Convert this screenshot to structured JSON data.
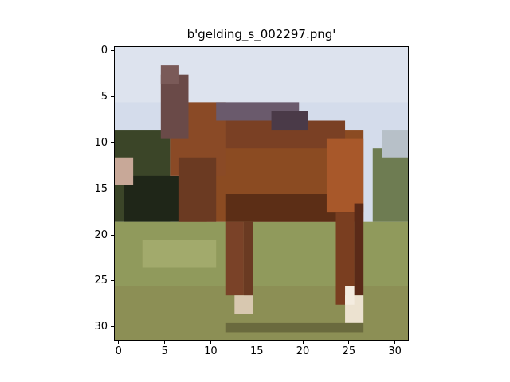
{
  "figure": {
    "title": "b'gelding_s_002297.png'"
  },
  "axes": {
    "x_ticks": [
      "0",
      "5",
      "10",
      "15",
      "20",
      "25",
      "30"
    ],
    "y_ticks": [
      "0",
      "5",
      "10",
      "15",
      "20",
      "25",
      "30"
    ],
    "x_tick_values": [
      0,
      5,
      10,
      15,
      20,
      25,
      30
    ],
    "y_tick_values": [
      0,
      5,
      10,
      15,
      20,
      25,
      30
    ],
    "xlim": [
      -0.5,
      31.5
    ],
    "ylim": [
      31.5,
      -0.5
    ]
  },
  "image": {
    "description_subject": "horse",
    "colors": {
      "sky": "#cfd8e6",
      "sky_light": "#dfe5ee",
      "trees": "#2f3a22",
      "trees_dark": "#1e2418",
      "grass": "#8f9a5c",
      "grass_light": "#a6ac6c",
      "horse": "#8a4a22",
      "horse_dark": "#5a2e18",
      "mane": "#5e4c5e",
      "leg_white": "#e8dcc8"
    }
  }
}
